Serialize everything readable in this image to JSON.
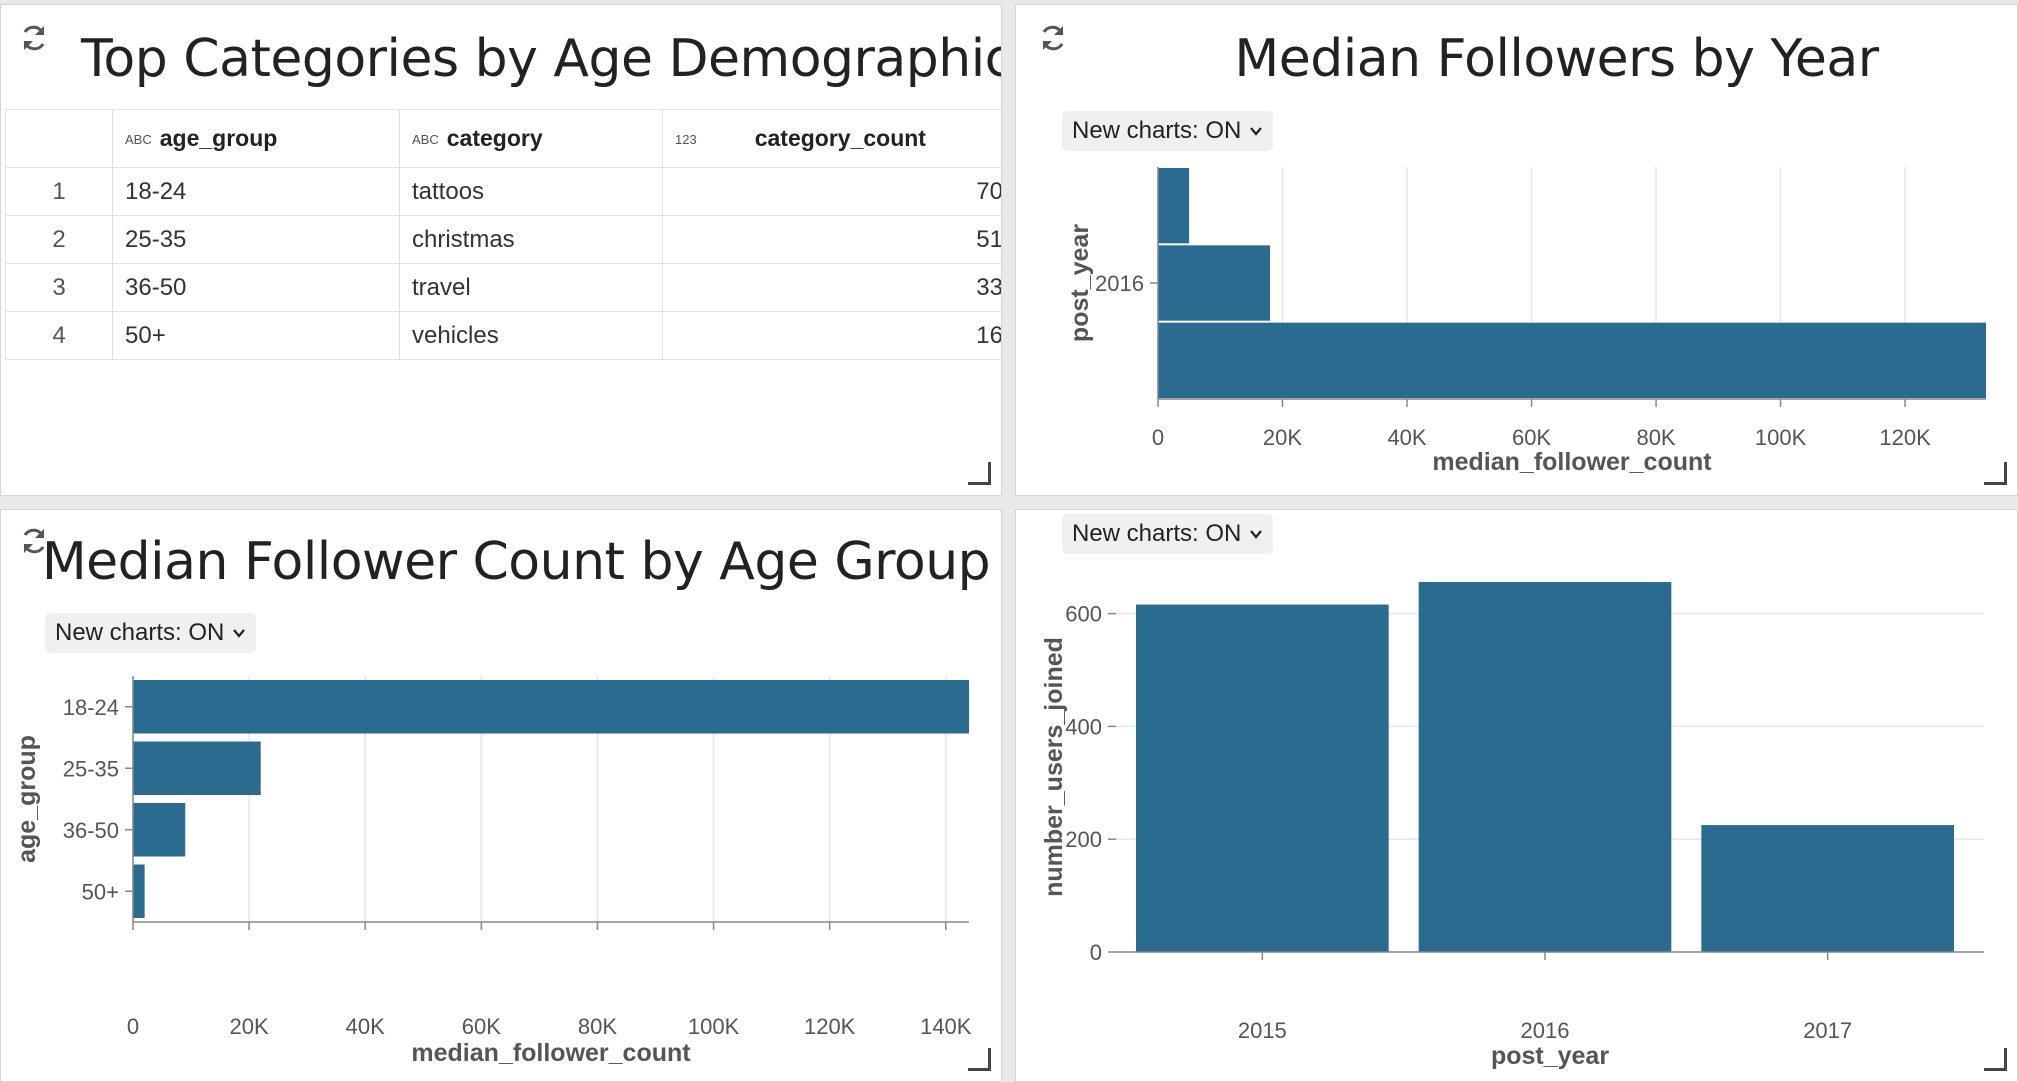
{
  "panels": {
    "top_left": {
      "title": "Top Categories by Age Demographics",
      "table": {
        "columns": [
          {
            "label": "",
            "type_icon": ""
          },
          {
            "label": "age_group",
            "type_icon": "ABC"
          },
          {
            "label": "category",
            "type_icon": "ABC"
          },
          {
            "label": "category_count",
            "type_icon": "123"
          }
        ],
        "rows": [
          {
            "index": "1",
            "age_group": "18-24",
            "category": "tattoos",
            "category_count": "70"
          },
          {
            "index": "2",
            "age_group": "25-35",
            "category": "christmas",
            "category_count": "51"
          },
          {
            "index": "3",
            "age_group": "36-50",
            "category": "travel",
            "category_count": "33"
          },
          {
            "index": "4",
            "age_group": "50+",
            "category": "vehicles",
            "category_count": "16"
          }
        ]
      }
    },
    "top_right": {
      "title": "Median Followers by Year",
      "toggle_label": "New charts: ON"
    },
    "bottom_left": {
      "title": "Median Follower Count by Age Group",
      "toggle_label": "New charts: ON"
    },
    "bottom_right": {
      "toggle_label": "New charts: ON"
    }
  },
  "colors": {
    "bar": "#2b6b8f",
    "grid": "#e6e6e6",
    "axis": "#888888",
    "tick_text": "#555555",
    "axis_title": "#555555"
  },
  "chart_data": [
    {
      "id": "followers_by_year",
      "type": "bar",
      "orientation": "horizontal",
      "title": "Median Followers by Year",
      "xlabel": "median_follower_count",
      "ylabel": "post_year",
      "categories": [
        "",
        "2016",
        ""
      ],
      "values": [
        5000,
        18000,
        133000
      ],
      "xlim": [
        0,
        133000
      ],
      "xticks": [
        0,
        20000,
        40000,
        60000,
        80000,
        100000,
        120000
      ],
      "xtick_labels": [
        "0",
        "20K",
        "40K",
        "60K",
        "80K",
        "100K",
        "120K"
      ],
      "grid": true
    },
    {
      "id": "followers_by_age",
      "type": "bar",
      "orientation": "horizontal",
      "title": "Median Follower Count by Age Group",
      "xlabel": "median_follower_count",
      "ylabel": "age_group",
      "categories": [
        "18-24",
        "25-35",
        "36-50",
        "50+"
      ],
      "values": [
        144000,
        22000,
        9000,
        2000
      ],
      "xlim": [
        0,
        144000
      ],
      "xticks": [
        0,
        20000,
        40000,
        60000,
        80000,
        100000,
        120000,
        140000
      ],
      "xtick_labels": [
        "0",
        "20K",
        "40K",
        "60K",
        "80K",
        "100K",
        "120K",
        "140K"
      ],
      "grid": true
    },
    {
      "id": "users_joined_by_year",
      "type": "bar",
      "orientation": "vertical",
      "xlabel": "post_year",
      "ylabel": "number_users_joined",
      "categories": [
        "2015",
        "2016",
        "2017"
      ],
      "values": [
        616,
        656,
        225
      ],
      "ylim": [
        0,
        656
      ],
      "yticks": [
        0,
        200,
        400,
        600
      ],
      "ytick_labels": [
        "0",
        "200",
        "400",
        "600"
      ],
      "grid": true
    }
  ]
}
